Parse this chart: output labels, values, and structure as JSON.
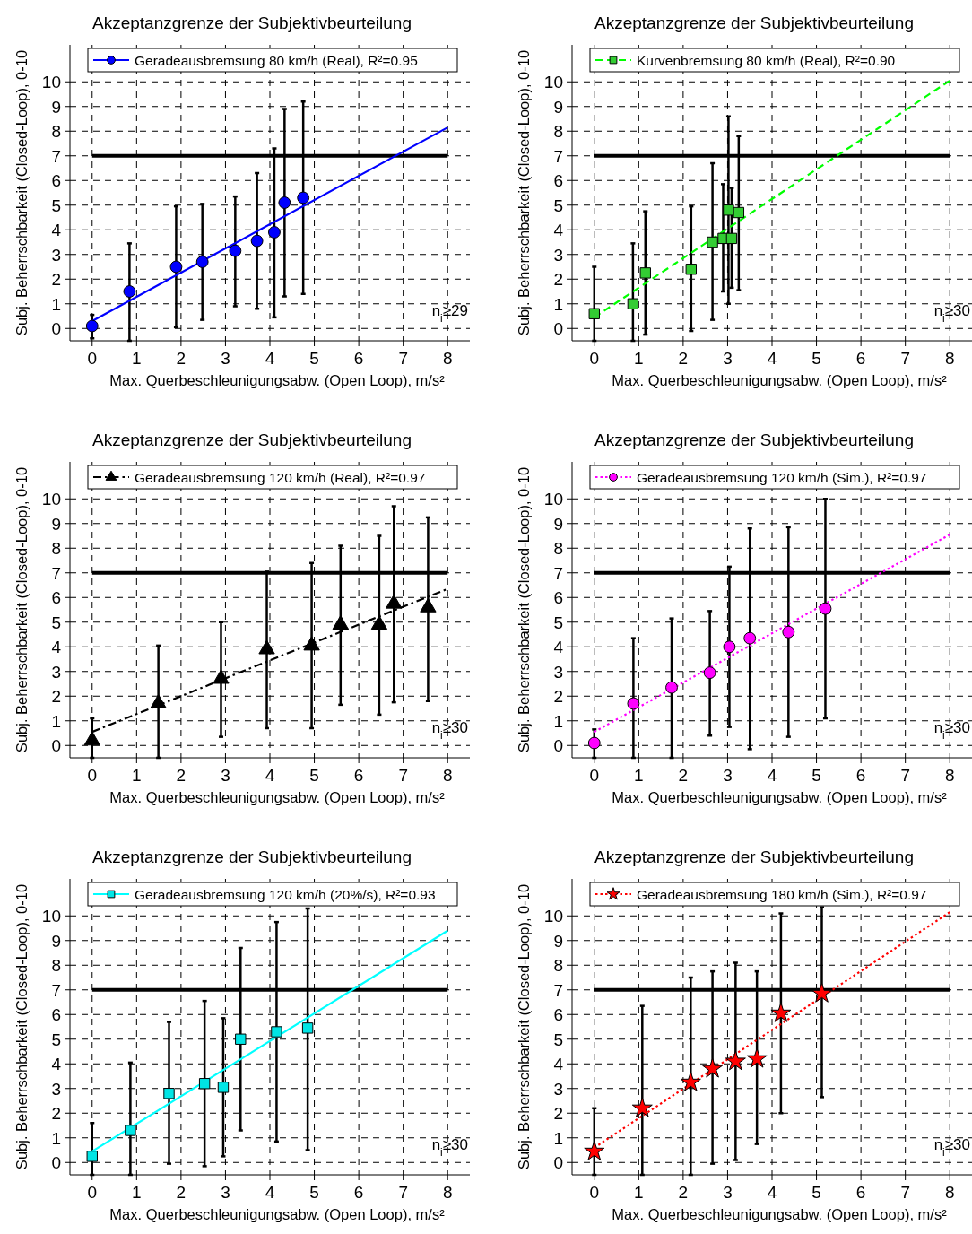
{
  "chart_data": [
    {
      "type": "scatter",
      "title": "Akzeptanzgrenze der Subjektivbeurteilung",
      "xlabel": "Max. Querbeschleunigungsabw. (Open Loop), m/s²",
      "ylabel": "Subj. Beherrschbarkeit (Closed-Loop), 0-10",
      "xlim": [
        -0.5,
        8.5
      ],
      "ylim": [
        -0.5,
        11.5
      ],
      "xticks": [
        0,
        1,
        2,
        3,
        4,
        5,
        6,
        7,
        8
      ],
      "yticks": [
        0,
        1,
        2,
        3,
        4,
        5,
        6,
        7,
        8,
        9,
        10
      ],
      "grid": true,
      "legend": "top",
      "annotations": [
        "n$_{i}$≥29"
      ],
      "ref_lines": [
        {
          "axis": "y",
          "value": 7,
          "color": "#000000"
        }
      ],
      "series": [
        {
          "type": "scatter",
          "name": "Geradeausbremsung 80 km/h (Real), R²=0.95",
          "color": "#0000ff",
          "marker": "circle",
          "x": [
            0,
            0.84,
            1.89,
            2.48,
            3.22,
            3.71,
            4.1,
            4.33,
            4.75
          ],
          "values": [
            0.1,
            1.5,
            2.5,
            2.7,
            3.15,
            3.55,
            3.9,
            5.1,
            5.3
          ],
          "errors": [
            [
              -0.4,
              0.55
            ],
            [
              -0.5,
              3.45
            ],
            [
              0.05,
              4.95
            ],
            [
              0.35,
              5.05
            ],
            [
              0.9,
              5.35
            ],
            [
              0.8,
              6.3
            ],
            [
              0.45,
              7.3
            ],
            [
              1.3,
              8.9
            ],
            [
              1.4,
              9.2
            ]
          ]
        },
        {
          "type": "line",
          "color": "#0000ff",
          "line_style": "solid",
          "x": [
            0,
            8
          ],
          "values": [
            0.3,
            8.15
          ]
        }
      ]
    },
    {
      "type": "scatter",
      "title": "Akzeptanzgrenze der Subjektivbeurteilung",
      "xlabel": "Max. Querbeschleunigungsabw. (Open Loop), m/s²",
      "ylabel": "Subj. Beherrschbarkeit (Closed-Loop), 0-10",
      "xlim": [
        -0.5,
        8.5
      ],
      "ylim": [
        -0.5,
        11.5
      ],
      "xticks": [
        0,
        1,
        2,
        3,
        4,
        5,
        6,
        7,
        8
      ],
      "yticks": [
        0,
        1,
        2,
        3,
        4,
        5,
        6,
        7,
        8,
        9,
        10
      ],
      "grid": true,
      "legend": "top",
      "annotations": [
        "n$_{i}$≥30"
      ],
      "ref_lines": [
        {
          "axis": "y",
          "value": 7,
          "color": "#000000"
        }
      ],
      "series": [
        {
          "type": "scatter",
          "name": "Kurvenbremsung 80 km/h (Real), R²=0.90",
          "color": "#33cc33",
          "marker": "square",
          "x": [
            0,
            0.87,
            1.15,
            2.18,
            2.66,
            2.9,
            3.02,
            3.09,
            3.25
          ],
          "values": [
            0.6,
            1.0,
            2.25,
            2.4,
            3.5,
            3.65,
            4.8,
            3.65,
            4.7
          ],
          "errors": [
            [
              -0.5,
              2.5
            ],
            [
              -0.5,
              3.45
            ],
            [
              -0.25,
              4.75
            ],
            [
              -0.1,
              4.95
            ],
            [
              0.35,
              6.7
            ],
            [
              1.5,
              5.85
            ],
            [
              1.0,
              8.6
            ],
            [
              1.65,
              5.7
            ],
            [
              1.55,
              7.8
            ]
          ]
        },
        {
          "type": "line",
          "color": "#00ff00",
          "line_style": "dashed",
          "x": [
            0,
            8
          ],
          "values": [
            0.45,
            10.05
          ]
        }
      ]
    },
    {
      "type": "scatter",
      "title": "Akzeptanzgrenze der Subjektivbeurteilung",
      "xlabel": "Max. Querbeschleunigungsabw. (Open Loop), m/s²",
      "ylabel": "Subj. Beherrschbarkeit (Closed-Loop), 0-10",
      "xlim": [
        -0.5,
        8.5
      ],
      "ylim": [
        -0.5,
        11.5
      ],
      "xticks": [
        0,
        1,
        2,
        3,
        4,
        5,
        6,
        7,
        8
      ],
      "yticks": [
        0,
        1,
        2,
        3,
        4,
        5,
        6,
        7,
        8,
        9,
        10
      ],
      "grid": true,
      "legend": "top",
      "annotations": [
        "n$_{i}$≥30"
      ],
      "ref_lines": [
        {
          "axis": "y",
          "value": 7,
          "color": "#000000"
        }
      ],
      "series": [
        {
          "type": "scatter",
          "name": "Geradeausbremsung 120 km/h (Real), R²=0.97",
          "color": "#000000",
          "marker": "triangle",
          "x": [
            0,
            1.49,
            2.9,
            3.93,
            4.94,
            5.59,
            6.46,
            6.79,
            7.56
          ],
          "values": [
            0.2,
            1.7,
            2.7,
            3.9,
            4.05,
            4.9,
            4.9,
            5.75,
            5.6
          ],
          "errors": [
            [
              -0.5,
              1.1
            ],
            [
              -0.5,
              4.05
            ],
            [
              0.35,
              5.0
            ],
            [
              0.7,
              7.05
            ],
            [
              0.7,
              7.4
            ],
            [
              1.65,
              8.1
            ],
            [
              1.25,
              8.5
            ],
            [
              1.75,
              9.7
            ],
            [
              1.8,
              9.25
            ]
          ]
        },
        {
          "type": "line",
          "color": "#000000",
          "line_style": "dashdot",
          "x": [
            0,
            8
          ],
          "values": [
            0.55,
            6.35
          ]
        }
      ]
    },
    {
      "type": "scatter",
      "title": "Akzeptanzgrenze der Subjektivbeurteilung",
      "xlabel": "Max. Querbeschleunigungsabw. (Open Loop), m/s²",
      "ylabel": "Subj. Beherrschbarkeit (Closed-Loop), 0-10",
      "xlim": [
        -0.5,
        8.5
      ],
      "ylim": [
        -0.5,
        11.5
      ],
      "xticks": [
        0,
        1,
        2,
        3,
        4,
        5,
        6,
        7,
        8
      ],
      "yticks": [
        0,
        1,
        2,
        3,
        4,
        5,
        6,
        7,
        8,
        9,
        10
      ],
      "grid": true,
      "legend": "top",
      "annotations": [
        "n$_{i}$≥30"
      ],
      "ref_lines": [
        {
          "axis": "y",
          "value": 7,
          "color": "#000000"
        }
      ],
      "series": [
        {
          "type": "scatter",
          "name": "Geradeausbremsung 120 km/h (Sim.), R²=0.97",
          "color": "#ff00ff",
          "marker": "circle",
          "x": [
            0,
            0.88,
            1.74,
            2.6,
            3.04,
            3.5,
            4.37,
            5.2
          ],
          "values": [
            0.1,
            1.7,
            2.35,
            2.95,
            4.0,
            4.35,
            4.6,
            5.55
          ],
          "errors": [
            [
              -0.5,
              0.65
            ],
            [
              -0.5,
              4.35
            ],
            [
              -0.5,
              5.15
            ],
            [
              0.4,
              5.45
            ],
            [
              0.75,
              7.25
            ],
            [
              -0.15,
              8.8
            ],
            [
              0.35,
              8.85
            ],
            [
              1.1,
              10.0
            ]
          ]
        },
        {
          "type": "line",
          "color": "#ff00ff",
          "line_style": "dotted",
          "x": [
            0,
            8
          ],
          "values": [
            0.55,
            8.55
          ]
        }
      ]
    },
    {
      "type": "scatter",
      "title": "Akzeptanzgrenze der Subjektivbeurteilung",
      "xlabel": "Max. Querbeschleunigungsabw. (Open Loop), m/s²",
      "ylabel": "Subj. Beherrschbarkeit (Closed-Loop), 0-10",
      "xlim": [
        -0.5,
        8.5
      ],
      "ylim": [
        -0.5,
        11.5
      ],
      "xticks": [
        0,
        1,
        2,
        3,
        4,
        5,
        6,
        7,
        8
      ],
      "yticks": [
        0,
        1,
        2,
        3,
        4,
        5,
        6,
        7,
        8,
        9,
        10
      ],
      "grid": true,
      "legend": "top",
      "annotations": [
        "n$_{i}$≥30"
      ],
      "ref_lines": [
        {
          "axis": "y",
          "value": 7,
          "color": "#000000"
        }
      ],
      "series": [
        {
          "type": "scatter",
          "name": "Geradeausbremsung 120 km/h (20%/s), R²=0.93",
          "color": "#00e5e5",
          "marker": "square",
          "x": [
            0,
            0.86,
            1.73,
            2.53,
            2.95,
            3.34,
            4.15,
            4.85
          ],
          "values": [
            0.25,
            1.3,
            2.8,
            3.2,
            3.05,
            5.0,
            5.3,
            5.45
          ],
          "errors": [
            [
              -0.5,
              1.6
            ],
            [
              -0.5,
              4.05
            ],
            [
              -0.05,
              5.7
            ],
            [
              -0.15,
              6.55
            ],
            [
              0.25,
              5.85
            ],
            [
              1.3,
              8.7
            ],
            [
              0.85,
              9.75
            ],
            [
              0.5,
              10.3
            ]
          ]
        },
        {
          "type": "line",
          "color": "#00ffff",
          "line_style": "solid",
          "x": [
            0,
            8
          ],
          "values": [
            0.45,
            9.4
          ]
        }
      ]
    },
    {
      "type": "scatter",
      "title": "Akzeptanzgrenze der Subjektivbeurteilung",
      "xlabel": "Max. Querbeschleunigungsabw. (Open Loop), m/s²",
      "ylabel": "Subj. Beherrschbarkeit (Closed-Loop), 0-10",
      "xlim": [
        -0.5,
        8.5
      ],
      "ylim": [
        -0.5,
        11.5
      ],
      "xticks": [
        0,
        1,
        2,
        3,
        4,
        5,
        6,
        7,
        8
      ],
      "yticks": [
        0,
        1,
        2,
        3,
        4,
        5,
        6,
        7,
        8,
        9,
        10
      ],
      "grid": true,
      "legend": "top",
      "annotations": [
        "n$_{i}$≥30"
      ],
      "ref_lines": [
        {
          "axis": "y",
          "value": 7,
          "color": "#000000"
        }
      ],
      "series": [
        {
          "type": "scatter",
          "name": "Geradeausbremsung 180 km/h (Sim.), R²=0.97",
          "color": "#ff0000",
          "marker": "star",
          "x": [
            0,
            1.08,
            2.17,
            2.66,
            3.18,
            3.66,
            4.2,
            5.12
          ],
          "values": [
            0.45,
            2.2,
            3.25,
            3.8,
            4.1,
            4.2,
            6.05,
            6.85
          ],
          "errors": [
            [
              -0.5,
              2.2
            ],
            [
              -0.5,
              6.35
            ],
            [
              -0.5,
              7.5
            ],
            [
              -0.05,
              7.75
            ],
            [
              0.1,
              8.1
            ],
            [
              0.75,
              7.75
            ],
            [
              2.0,
              10.1
            ],
            [
              2.65,
              10.35
            ]
          ]
        },
        {
          "type": "line",
          "color": "#ff0000",
          "line_style": "dotted",
          "x": [
            0,
            8
          ],
          "values": [
            0.6,
            10.15
          ]
        }
      ]
    }
  ]
}
